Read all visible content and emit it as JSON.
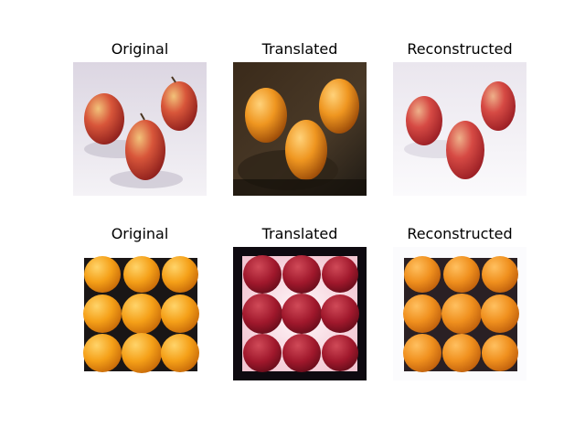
{
  "rows": [
    {
      "name": "apples",
      "panels": [
        {
          "title": "Original",
          "image": "apple-photo"
        },
        {
          "title": "Translated",
          "image": "apple-to-orange-photo"
        },
        {
          "title": "Reconstructed",
          "image": "apple-reconstructed-photo"
        }
      ]
    },
    {
      "name": "oranges",
      "panels": [
        {
          "title": "Original",
          "image": "orange-photo"
        },
        {
          "title": "Translated",
          "image": "orange-to-apple-photo"
        },
        {
          "title": "Reconstructed",
          "image": "orange-reconstructed-photo"
        }
      ]
    }
  ],
  "colors": {
    "apple_red": "#c0322c",
    "apple_highlight": "#e98a5c",
    "orange": "#f29a1e",
    "orange_highlight": "#ffc25a",
    "dark_background": "#2a1d12",
    "tray": "#1a1616"
  }
}
